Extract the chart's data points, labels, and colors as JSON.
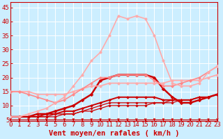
{
  "x": [
    0,
    1,
    2,
    3,
    4,
    5,
    6,
    7,
    8,
    9,
    10,
    11,
    12,
    13,
    14,
    15,
    16,
    17,
    18,
    19,
    20,
    21,
    22,
    23
  ],
  "series": [
    {
      "y": [
        6,
        6,
        6,
        6,
        6,
        6,
        7,
        7,
        8,
        8,
        9,
        10,
        10,
        10,
        10,
        10,
        11,
        11,
        11,
        12,
        12,
        13,
        13,
        14
      ],
      "color": "#cc0000",
      "lw": 0.9,
      "marker": "D",
      "ms": 1.8
    },
    {
      "y": [
        6,
        6,
        6,
        6,
        6,
        7,
        7,
        7,
        8,
        9,
        10,
        11,
        11,
        11,
        11,
        11,
        11,
        11,
        12,
        12,
        12,
        13,
        13,
        14
      ],
      "color": "#cc0000",
      "lw": 0.9,
      "marker": "D",
      "ms": 1.8
    },
    {
      "y": [
        6,
        6,
        6,
        6,
        7,
        7,
        8,
        8,
        9,
        10,
        11,
        12,
        13,
        13,
        13,
        13,
        13,
        12,
        12,
        12,
        12,
        13,
        13,
        14
      ],
      "color": "#cc0000",
      "lw": 1.4,
      "marker": "D",
      "ms": 2.0
    },
    {
      "y": [
        6,
        6,
        6,
        7,
        7,
        8,
        9,
        10,
        12,
        14,
        19,
        20,
        21,
        21,
        21,
        21,
        20,
        16,
        13,
        11,
        11,
        12,
        13,
        14
      ],
      "color": "#cc0000",
      "lw": 1.8,
      "marker": "D",
      "ms": 2.5
    },
    {
      "y": [
        15,
        15,
        15,
        14,
        14,
        14,
        14,
        15,
        16,
        17,
        17,
        18,
        18,
        18,
        18,
        18,
        18,
        18,
        19,
        19,
        19,
        19,
        20,
        21
      ],
      "color": "#ffaaaa",
      "lw": 1.3,
      "marker": "o",
      "ms": 2.5
    },
    {
      "y": [
        15,
        15,
        14,
        13,
        12,
        11,
        12,
        14,
        16,
        18,
        20,
        20,
        21,
        21,
        21,
        21,
        19,
        17,
        17,
        18,
        19,
        20,
        22,
        24
      ],
      "color": "#ff8888",
      "lw": 1.2,
      "marker": "D",
      "ms": 2.2
    },
    {
      "y": [
        6,
        6,
        7,
        8,
        9,
        11,
        13,
        17,
        21,
        26,
        29,
        35,
        42,
        41,
        42,
        41,
        35,
        26,
        18,
        17,
        17,
        18,
        22,
        24
      ],
      "color": "#ffaaaa",
      "lw": 1.2,
      "marker": "o",
      "ms": 2.5
    }
  ],
  "xlabel": "Vent moyen/en rafales ( km/h )",
  "ylabel_ticks": [
    5,
    10,
    15,
    20,
    25,
    30,
    35,
    40,
    45
  ],
  "xlim": [
    0,
    23
  ],
  "ylim": [
    4.5,
    47
  ],
  "bg_color": "#cceeff",
  "grid_color": "#aaddcc",
  "tick_color": "#cc0000",
  "label_color": "#cc0000",
  "xlabel_fontsize": 7.5,
  "tick_fontsize": 6.5
}
